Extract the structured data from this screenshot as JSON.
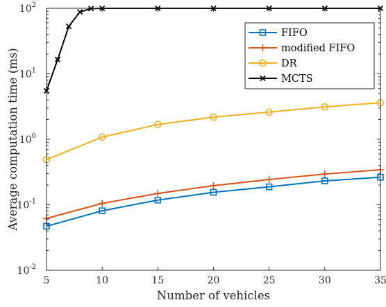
{
  "chart_data": {
    "type": "line",
    "xlabel": "Number of vehicles",
    "ylabel": "Average computation time (ms)",
    "xlim": [
      5,
      35
    ],
    "ylim": [
      0.01,
      100
    ],
    "yscale": "log",
    "grid": false,
    "legend_position": "top-right",
    "x_ticks": [
      5,
      10,
      15,
      20,
      25,
      30,
      35
    ],
    "y_ticks": [
      {
        "value": 0.01,
        "base": "10",
        "exp": "-2"
      },
      {
        "value": 0.1,
        "base": "10",
        "exp": "-1"
      },
      {
        "value": 1,
        "base": "10",
        "exp": "0"
      },
      {
        "value": 10,
        "base": "10",
        "exp": "1"
      },
      {
        "value": 100,
        "base": "10",
        "exp": "2"
      }
    ],
    "series": [
      {
        "name": "FIFO",
        "color": "#0072BD",
        "marker": "square",
        "x": [
          5,
          10,
          15,
          20,
          25,
          30,
          35
        ],
        "y": [
          0.047,
          0.081,
          0.118,
          0.155,
          0.188,
          0.232,
          0.263
        ]
      },
      {
        "name": "modified FIFO",
        "color": "#D95319",
        "marker": "plus",
        "x": [
          5,
          10,
          15,
          20,
          25,
          30,
          35
        ],
        "y": [
          0.062,
          0.105,
          0.149,
          0.196,
          0.243,
          0.295,
          0.342
        ]
      },
      {
        "name": "DR",
        "color": "#EDB120",
        "marker": "circle",
        "x": [
          5,
          10,
          15,
          20,
          25,
          30,
          35
        ],
        "y": [
          0.49,
          1.08,
          1.68,
          2.18,
          2.6,
          3.12,
          3.62
        ]
      },
      {
        "name": "MCTS",
        "color": "#000000",
        "marker": "x",
        "x": [
          5,
          6,
          7,
          8,
          9,
          10,
          15,
          20,
          25,
          30,
          35
        ],
        "y": [
          5.5,
          16.5,
          53,
          88,
          99,
          100,
          100,
          100,
          100,
          100,
          100
        ]
      }
    ]
  }
}
